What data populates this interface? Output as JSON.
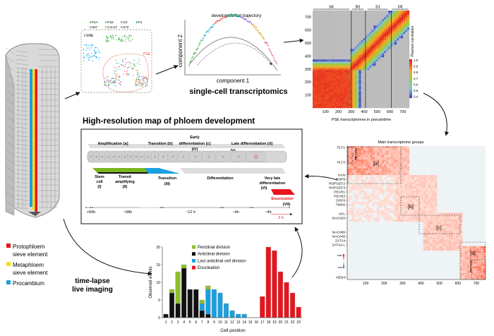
{
  "legend_root": {
    "items": [
      {
        "label_1": "Protophloem",
        "label_2": "sieve element",
        "color": "#e8141c"
      },
      {
        "label_1": "Metaphloem",
        "label_2": "sieve element",
        "color": "#f5e10f"
      },
      {
        "label_1": "Procambium",
        "label_2": "",
        "color": "#1a9fe0"
      }
    ]
  },
  "tsne": {
    "label": "t-SNE",
    "region_label": "PSE",
    "legend": [
      {
        "label": "P1A",
        "color": "#4db848"
      },
      {
        "label": "P1D",
        "color": "#2fb5e8"
      },
      {
        "label": "CD",
        "color": "#f06b5a"
      },
      {
        "label": "P1",
        "color": "#1aa588"
      },
      {
        "label": "N57",
        "color": "#9b7fd0"
      },
      {
        "label": "CALS7",
        "color": "#d9a81c"
      },
      {
        "label": "N73",
        "color": "#e25fa8"
      }
    ]
  },
  "trajectory": {
    "title": "developmental trajectory",
    "xlabel": "component 1",
    "ylabel": "component 2"
  },
  "section_titles": {
    "single_cell": "single-cell transcriptomics",
    "map": "High-resolution map of phloem development",
    "live": "time-lapse live imaging"
  },
  "correlation_heatmap": {
    "groups": [
      "[a]",
      "[b]",
      "[c]",
      "[d]"
    ],
    "xlabel": "PSE transcriptomes in pseudotime",
    "colorbar_label": "Pearson correlation",
    "colorbar_ticks": [
      "1.0",
      "0.9",
      "0.8",
      "0.7",
      "0.6",
      "0.5",
      "0.4"
    ],
    "x_ticks": [
      "100",
      "200",
      "300",
      "400",
      "500",
      "600",
      "700"
    ],
    "y_ticks": [
      "700",
      "600",
      "500",
      "400",
      "300",
      "200",
      "100"
    ]
  },
  "phases": {
    "top": [
      {
        "label": "Amplification [a]",
        "sub": ""
      },
      {
        "label": "Transition [b]",
        "sub": ""
      },
      {
        "label": "Early",
        "label2": "differentiation [c]",
        "sub": "(IV)"
      },
      {
        "label": "Late differentiation [d]",
        "sub": "(V)"
      }
    ],
    "bottom": [
      {
        "label": "Stem",
        "label2": "cell",
        "sub": "(I)"
      },
      {
        "label": "Transit",
        "label2": "amplifying",
        "sub": "(II)"
      },
      {
        "label": "Transition",
        "label2": "",
        "sub": "(III)"
      },
      {
        "label": "Differentiation",
        "label2": "",
        "sub": ""
      },
      {
        "label": "Very late",
        "label2": "differentiation",
        "sub": "(VI)"
      }
    ],
    "enucleation": {
      "label": "Enucleation",
      "sub": "(VII)",
      "duration": "2 h"
    },
    "durations": [
      ">60h",
      "~58h",
      "~12 h",
      "~4h",
      "~4h"
    ],
    "colors": {
      "green": "#7ab51d",
      "blue": "#1a9fe0",
      "red": "#e8141c"
    }
  },
  "transcriptome_groups": {
    "title": "Main transcriptome groups",
    "genes": [
      "PLT1",
      "PLT2",
      "HAN",
      "ROP9",
      "ROPGEF2",
      "ROPGEF3",
      "PEAR1",
      "PEAR2",
      "DOF6",
      "TMO6",
      "APL",
      "NAC020",
      "NAC086",
      "NAC045",
      "ZAT14",
      "ZAT14-L",
      "NEN4"
    ],
    "boxes": [
      "[a]",
      "[b]",
      "[c]",
      "[d]"
    ],
    "sub_labels": [
      "PLT1-like",
      "NEN4-like"
    ],
    "scale": [
      "max",
      "min"
    ],
    "x_ticks": [
      "100",
      "200",
      "300",
      "400",
      "500",
      "600",
      "700"
    ]
  },
  "chart_data": {
    "type": "bar",
    "stacked": true,
    "xlabel": "Cell position",
    "ylabel": "Observed events",
    "ylim": [
      0,
      20
    ],
    "y_ticks": [
      "0",
      "5",
      "10",
      "15",
      "20"
    ],
    "legend_placement": "top",
    "categories": [
      "1",
      "2",
      "3",
      "4",
      "5",
      "6",
      "7",
      "8",
      "9",
      "10",
      "11",
      "12",
      "13",
      "14",
      "15",
      "16",
      "17",
      "18",
      "19",
      "20",
      "21",
      "22",
      "23"
    ],
    "series": [
      {
        "name": "Anticlinal division",
        "color": "#111111",
        "values": [
          1,
          7,
          4,
          14,
          8,
          8,
          2,
          1,
          0,
          0,
          0,
          0,
          0,
          0,
          0,
          0,
          0,
          0,
          0,
          0,
          0,
          0,
          0
        ]
      },
      {
        "name": "Last anticlinal cell division",
        "color": "#1a9fe0",
        "values": [
          0,
          0,
          0,
          0,
          0,
          0,
          2,
          7,
          8,
          7,
          4,
          2,
          1,
          1,
          0,
          0,
          0,
          0,
          0,
          0,
          0,
          0,
          0
        ]
      },
      {
        "name": "Periclinal division",
        "color": "#8cbf26",
        "values": [
          0,
          1,
          9,
          1,
          0,
          0,
          1,
          1,
          0,
          0,
          0,
          0,
          0,
          0,
          0,
          0,
          0,
          0,
          0,
          0,
          0,
          0,
          0
        ]
      },
      {
        "name": "Enucleation",
        "color": "#e8141c",
        "values": [
          0,
          0,
          0,
          0,
          0,
          0,
          0,
          0,
          0,
          0,
          0,
          0,
          0,
          0,
          0,
          0,
          6,
          20,
          19,
          13,
          10,
          7,
          3
        ]
      }
    ],
    "legend_order": [
      "Periclinal division",
      "Anticlinal division",
      "Last anticlinal cell division",
      "Enucleation"
    ]
  }
}
